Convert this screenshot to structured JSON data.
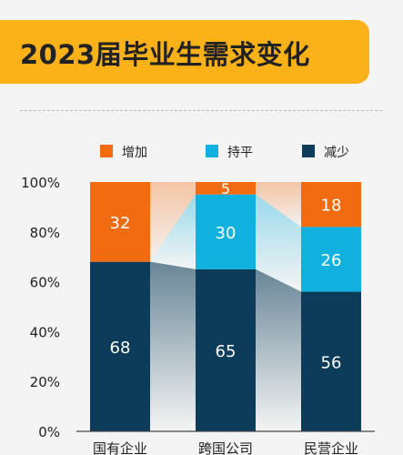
{
  "title": "2023届毕业生需求变化",
  "colors": {
    "title_bar": "#fbb118",
    "increase": "#f36b10",
    "flat": "#10b1de",
    "decrease": "#0c3c5a"
  },
  "chart_data": {
    "type": "bar",
    "stacked": true,
    "percent": true,
    "categories": [
      "国有企业",
      "跨国公司",
      "民营企业"
    ],
    "series": [
      {
        "name": "减少",
        "values": [
          68,
          65,
          56
        ],
        "color": "#0c3c5a"
      },
      {
        "name": "持平",
        "values": [
          0,
          30,
          26
        ],
        "color": "#10b1de"
      },
      {
        "name": "增加",
        "values": [
          32,
          5,
          18
        ],
        "color": "#f36b10"
      }
    ],
    "legend": [
      "增加",
      "持平",
      "减少"
    ],
    "legend_position": "top",
    "y_ticks": [
      "0%",
      "20%",
      "40%",
      "60%",
      "80%",
      "100%"
    ],
    "ylim": [
      0,
      100
    ],
    "grid": false
  }
}
